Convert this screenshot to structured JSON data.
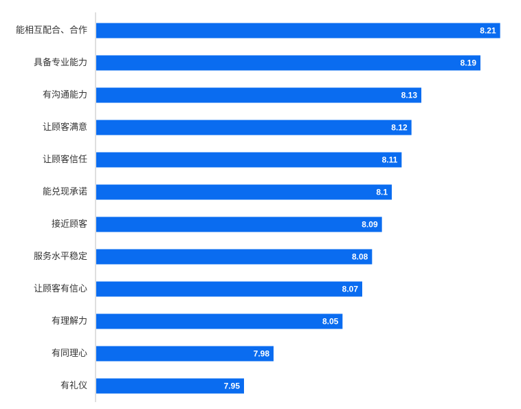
{
  "chart_data": {
    "type": "bar",
    "orientation": "horizontal",
    "categories": [
      "能相互配合、合作",
      "具备专业能力",
      "有沟通能力",
      "让顾客满意",
      "让顾客信任",
      "能兑现承诺",
      "接近顾客",
      "服务水平稳定",
      "让顾客有信心",
      "有理解力",
      "有同理心",
      "有礼仪"
    ],
    "values": [
      8.21,
      8.19,
      8.13,
      8.12,
      8.11,
      8.1,
      8.09,
      8.08,
      8.07,
      8.05,
      7.98,
      7.95
    ],
    "value_labels": [
      "8.21",
      "8.19",
      "8.13",
      "8.12",
      "8.11",
      "8.1",
      "8.09",
      "8.08",
      "8.07",
      "8.05",
      "7.98",
      "7.95"
    ],
    "xlim": [
      7.8,
      8.22
    ],
    "grid": false,
    "legend": "none",
    "bar_color": "#0A6CF0",
    "axis_color": "#BFBFBF"
  }
}
